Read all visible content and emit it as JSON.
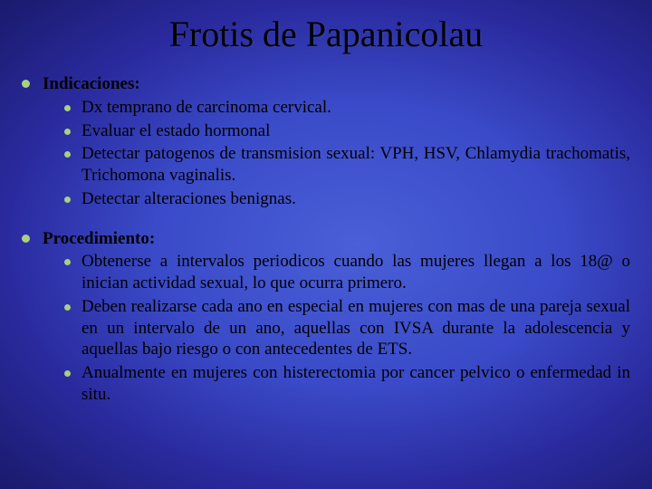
{
  "title": "Frotis de Papanicolau",
  "colors": {
    "bullet": "#a8d080",
    "text": "#000000"
  },
  "fontsize": {
    "title": 40,
    "body": 19
  },
  "sections": [
    {
      "header": "Indicaciones:",
      "items": [
        "Dx temprano de carcinoma cervical.",
        "Evaluar el estado hormonal",
        "Detectar patogenos de transmision sexual: VPH, HSV, Chlamydia trachomatis, Trichomona vaginalis.",
        "Detectar alteraciones benignas."
      ]
    },
    {
      "header": "Procedimiento:",
      "items": [
        "Obtenerse a intervalos periodicos cuando las mujeres llegan a los 18@ o inician actividad sexual, lo que ocurra primero.",
        "Deben realizarse cada ano en especial en mujeres con mas de una pareja sexual en un intervalo de un ano, aquellas con IVSA durante la adolescencia y aquellas bajo riesgo o con antecedentes de ETS.",
        "Anualmente en mujeres con histerectomia por cancer pelvico o enfermedad in situ."
      ]
    }
  ]
}
